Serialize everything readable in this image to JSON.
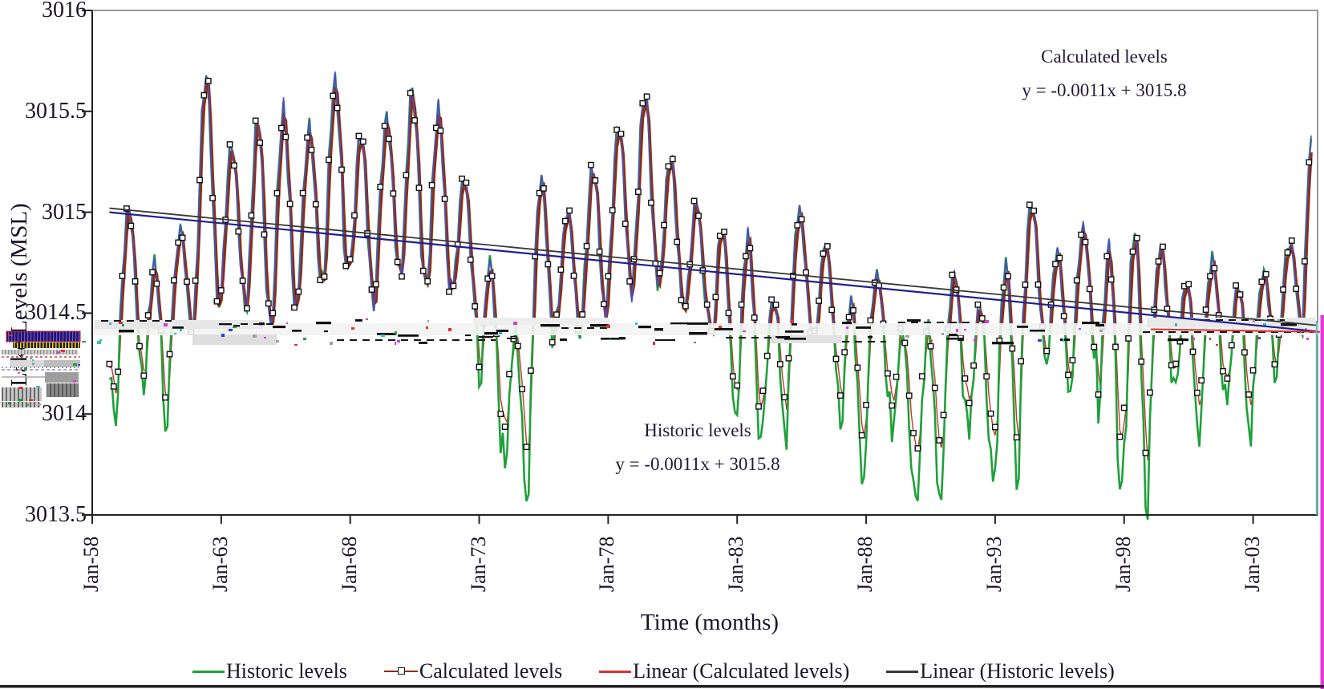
{
  "figure": {
    "y_axis_title": "Lake Levels (MSL)",
    "x_axis_title": "Time (months)",
    "annotations": {
      "calculated": {
        "title": "Calculated levels",
        "equation": "y = -0.0011x + 3015.8"
      },
      "historic": {
        "title": "Historic levels",
        "equation": "y = -0.0011x + 3015.8"
      }
    }
  },
  "chart_data": {
    "type": "line",
    "title": "",
    "xlabel": "Time (months)",
    "ylabel": "Lake Levels (MSL)",
    "ylim": [
      3013.5,
      3016
    ],
    "grid": false,
    "x_ticks": [
      "Jan-58",
      "Jan-63",
      "Jan-68",
      "Jan-73",
      "Jan-78",
      "Jan-83",
      "Jan-88",
      "Jan-93",
      "Jan-98",
      "Jan-03"
    ],
    "x_tick_interval_months": 60,
    "y_ticks": [
      "3016",
      "3015.5",
      "3015",
      "3014.5",
      "3014",
      "3013.5"
    ],
    "series": [
      {
        "name": "Historic levels",
        "color": "#1fa03a",
        "style": "line"
      },
      {
        "name": "Calculated levels",
        "color": "#8e2f10",
        "style": "line+square-marker",
        "marker_color": "#111111",
        "companion_line_color": "#4e4ec4"
      },
      {
        "name": "Linear (Calculated levels)",
        "color": "#e03030",
        "style": "trend",
        "equation": "y = -0.0011x + 3015.8"
      },
      {
        "name": "Linear (Historic levels)",
        "color": "#383838",
        "style": "trend",
        "equation": "y = -0.0011x + 3015.8"
      }
    ],
    "trend_endpoints": {
      "historic_trend": {
        "start_value": 3015.02,
        "end_value": 3014.44
      },
      "calculated_trend": {
        "start_value": 3015.0,
        "end_value": 3014.41
      }
    },
    "time_range": {
      "start": "Sep-1958",
      "end": "Apr-2005",
      "sampling": "monthly"
    },
    "envelope_format": "[year, annual_high_MSL, annual_low_MSL] (values read from plot, approximate)",
    "annual_envelope": [
      [
        1958,
        3014.8,
        3014.1
      ],
      [
        1959,
        3015.1,
        3014.2
      ],
      [
        1960,
        3014.8,
        3014.0
      ],
      [
        1961,
        3014.95,
        3014.35
      ],
      [
        1962,
        3015.8,
        3014.45
      ],
      [
        1963,
        3015.4,
        3014.5
      ],
      [
        1964,
        3015.55,
        3014.35
      ],
      [
        1965,
        3015.6,
        3014.4
      ],
      [
        1966,
        3015.5,
        3014.55
      ],
      [
        1967,
        3015.72,
        3014.6
      ],
      [
        1968,
        3015.45,
        3014.5
      ],
      [
        1969,
        3015.55,
        3014.65
      ],
      [
        1970,
        3015.7,
        3014.55
      ],
      [
        1971,
        3015.6,
        3014.5
      ],
      [
        1972,
        3015.25,
        3014.4
      ],
      [
        1973,
        3014.8,
        3013.95
      ],
      [
        1974,
        3014.45,
        3013.75
      ],
      [
        1975,
        3015.25,
        3014.3
      ],
      [
        1976,
        3015.05,
        3014.35
      ],
      [
        1977,
        3015.3,
        3014.4
      ],
      [
        1978,
        3015.5,
        3014.55
      ],
      [
        1979,
        3015.68,
        3014.6
      ],
      [
        1980,
        3015.35,
        3014.5
      ],
      [
        1981,
        3015.1,
        3014.4
      ],
      [
        1982,
        3015.0,
        3014.1
      ],
      [
        1983,
        3014.95,
        3013.95
      ],
      [
        1984,
        3014.6,
        3014.0
      ],
      [
        1985,
        3015.05,
        3014.35
      ],
      [
        1986,
        3014.9,
        3014.2
      ],
      [
        1987,
        3014.6,
        3013.85
      ],
      [
        1988,
        3014.75,
        3014.1
      ],
      [
        1989,
        3014.45,
        3013.8
      ],
      [
        1990,
        3014.5,
        3013.75
      ],
      [
        1991,
        3014.75,
        3014.05
      ],
      [
        1992,
        3014.6,
        3013.85
      ],
      [
        1993,
        3014.8,
        3013.8
      ],
      [
        1994,
        3015.1,
        3014.3
      ],
      [
        1995,
        3014.85,
        3014.15
      ],
      [
        1996,
        3015.0,
        3014.25
      ],
      [
        1997,
        3014.9,
        3013.75
      ],
      [
        1998,
        3015.0,
        3013.7
      ],
      [
        1999,
        3014.9,
        3014.2
      ],
      [
        2000,
        3014.7,
        3014.0
      ],
      [
        2001,
        3014.8,
        3014.15
      ],
      [
        2002,
        3014.7,
        3014.0
      ],
      [
        2003,
        3014.75,
        3014.2
      ],
      [
        2004,
        3014.9,
        3014.35
      ],
      [
        2005,
        3015.55,
        3015.0
      ]
    ],
    "artifact_colors": {
      "glitch_band_gray": "#f3f3f3",
      "glitch_indigo": "#241470",
      "edge_magenta": "#e53ad8",
      "edge_cyan": "#35c8c8",
      "bottom_bar": "#222222"
    },
    "legend_position": "bottom"
  }
}
